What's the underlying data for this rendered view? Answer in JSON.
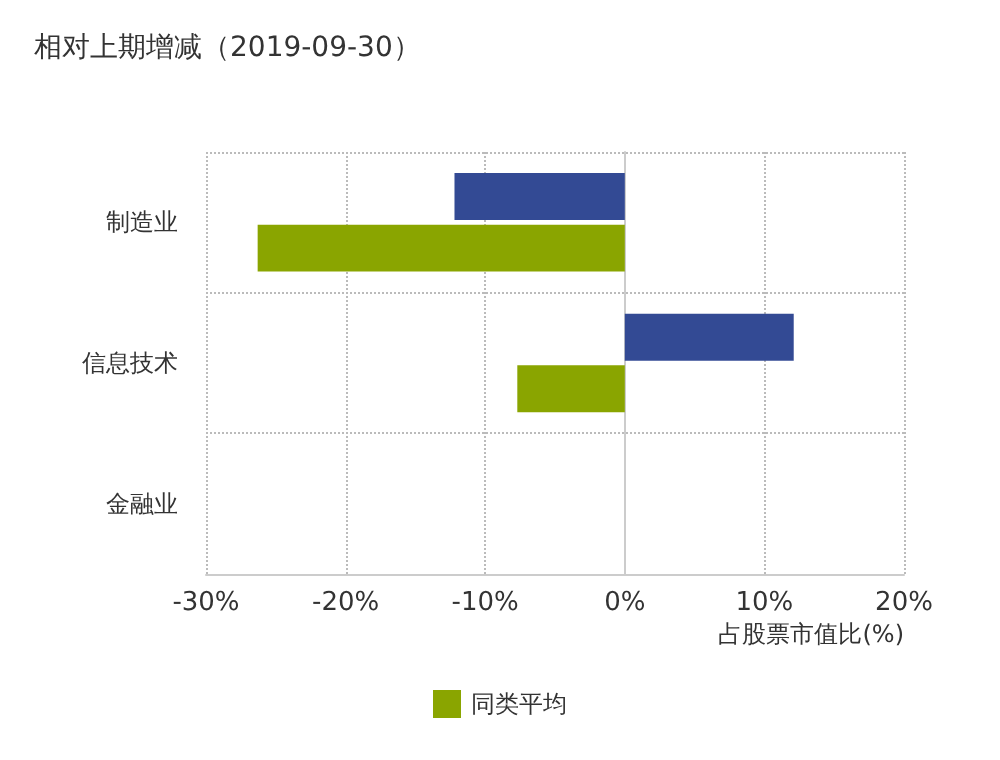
{
  "chart_data": {
    "type": "bar",
    "orientation": "horizontal",
    "title": "相对上期增减（2019-09-30）",
    "xlabel": "占股票市值比(%)",
    "categories": [
      "制造业",
      "信息技术",
      "金融业"
    ],
    "series": [
      {
        "color": "#334a94",
        "values": [
          -12.2,
          12.1,
          null
        ]
      },
      {
        "name": "同类平均",
        "color": "#8aa500",
        "values": [
          -26.3,
          -7.7,
          null
        ]
      }
    ],
    "xlim": [
      -30,
      20
    ],
    "xticks": [
      {
        "value": -30,
        "label": "-30%"
      },
      {
        "value": -20,
        "label": "-20%"
      },
      {
        "value": -10,
        "label": "-10%"
      },
      {
        "value": 0,
        "label": "0%"
      },
      {
        "value": 10,
        "label": "10%"
      },
      {
        "value": 20,
        "label": "20%"
      }
    ],
    "grid": true,
    "legend": "bottom"
  }
}
